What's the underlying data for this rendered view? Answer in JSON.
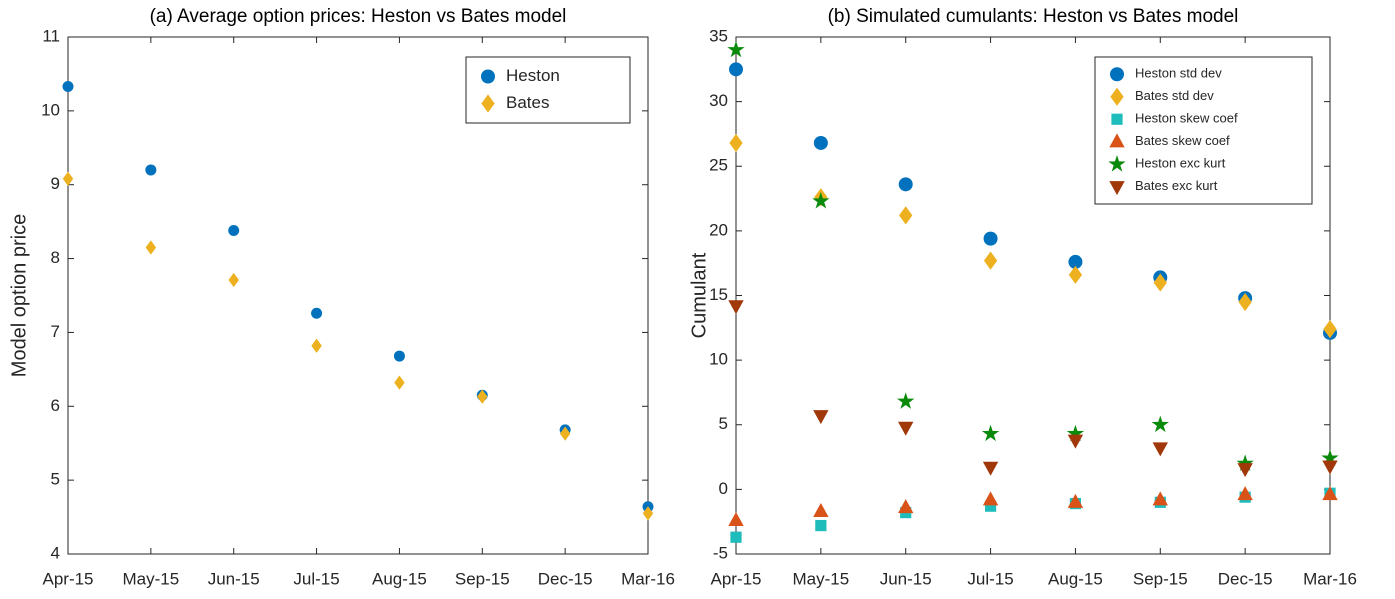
{
  "chart_data": [
    {
      "type": "scatter",
      "title": "(a) Average option prices: Heston vs Bates model",
      "ylabel": "Model option price",
      "categories": [
        "Apr-15",
        "May-15",
        "Jun-15",
        "Jul-15",
        "Aug-15",
        "Sep-15",
        "Dec-15",
        "Mar-16"
      ],
      "ylim": [
        4,
        11
      ],
      "yticks": [
        4,
        5,
        6,
        7,
        8,
        9,
        10,
        11
      ],
      "legend": "top-right",
      "series": [
        {
          "name": "Heston",
          "color": "#0072bd",
          "marker": "circle",
          "values": [
            10.33,
            9.2,
            8.38,
            7.26,
            6.68,
            6.15,
            5.68,
            4.64
          ]
        },
        {
          "name": "Bates",
          "color": "#edb120",
          "marker": "diamond",
          "values": [
            9.08,
            8.15,
            7.71,
            6.82,
            6.32,
            6.13,
            5.63,
            4.55
          ]
        }
      ]
    },
    {
      "type": "scatter",
      "title": "(b) Simulated cumulants: Heston vs Bates model",
      "ylabel": "Cumulant",
      "categories": [
        "Apr-15",
        "May-15",
        "Jun-15",
        "Jul-15",
        "Aug-15",
        "Sep-15",
        "Dec-15",
        "Mar-16"
      ],
      "ylim": [
        -5,
        35
      ],
      "yticks": [
        -5,
        0,
        5,
        10,
        15,
        20,
        25,
        30,
        35
      ],
      "legend": "top-right",
      "series": [
        {
          "name": "Heston std dev",
          "color": "#0072bd",
          "marker": "circle",
          "values": [
            32.5,
            26.8,
            23.6,
            19.4,
            17.6,
            16.4,
            14.8,
            12.1
          ]
        },
        {
          "name": "Bates std dev",
          "color": "#edb120",
          "marker": "diamond",
          "values": [
            26.8,
            22.6,
            21.2,
            17.7,
            16.6,
            16.0,
            14.5,
            12.4
          ]
        },
        {
          "name": "Heston skew coef",
          "color": "#1fbcbc",
          "marker": "square",
          "values": [
            -3.7,
            -2.8,
            -1.8,
            -1.3,
            -1.1,
            -1.0,
            -0.6,
            -0.3
          ]
        },
        {
          "name": "Bates skew coef",
          "color": "#d95319",
          "marker": "triangle-up",
          "values": [
            -2.4,
            -1.7,
            -1.4,
            -0.8,
            -1.0,
            -0.8,
            -0.4,
            -0.4
          ]
        },
        {
          "name": "Heston exc kurt",
          "color": "#0a8a0a",
          "marker": "star",
          "values": [
            34.0,
            22.3,
            6.8,
            4.3,
            4.3,
            5.0,
            2.0,
            2.4
          ]
        },
        {
          "name": "Bates exc kurt",
          "color": "#a0380a",
          "marker": "triangle-down",
          "values": [
            14.2,
            5.7,
            4.8,
            1.7,
            3.8,
            3.2,
            1.6,
            1.8
          ]
        }
      ]
    }
  ]
}
